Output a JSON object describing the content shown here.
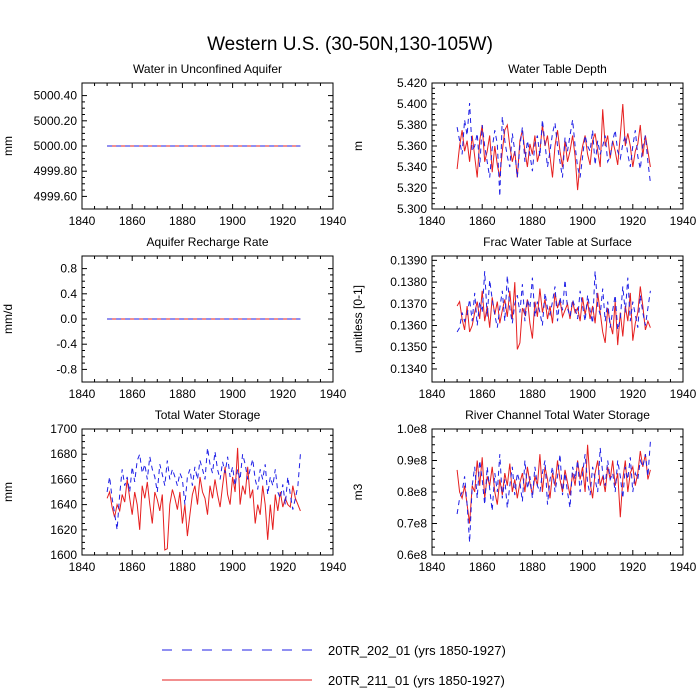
{
  "title": "Western U.S. (30-50N,130-105W)",
  "legend": [
    {
      "label": "20TR_202_01 (yrs 1850-1927)",
      "color": "#1f1fe6",
      "dash": "dashed"
    },
    {
      "label": "20TR_211_01 (yrs 1850-1927)",
      "color": "#e61f1f",
      "dash": "solid"
    }
  ],
  "chart_data": [
    {
      "type": "line",
      "title": "Water in Unconfined Aquifer",
      "ylabel": "mm",
      "xlim": [
        1840,
        1940
      ],
      "xticks": [
        1840,
        1860,
        1880,
        1900,
        1920,
        1940
      ],
      "xtick_labels": [
        "1840",
        "1860",
        "1880",
        "1900",
        "1920",
        "1940"
      ],
      "ylim": [
        4999.5,
        5000.5
      ],
      "yticks": [
        4999.6,
        4999.8,
        5000.0,
        5000.2,
        5000.4
      ],
      "ytick_labels": [
        "4999.60",
        "4999.80",
        "5000.00",
        "5000.20",
        "5000.40"
      ],
      "series": [
        {
          "name": "20TR_202_01",
          "x_start": 1850,
          "x_end": 1927,
          "values": [
            5000.0,
            5000.0
          ]
        },
        {
          "name": "20TR_211_01",
          "x_start": 1850,
          "x_end": 1927,
          "values": [
            5000.0,
            5000.0
          ]
        }
      ]
    },
    {
      "type": "line",
      "title": "Water Table Depth",
      "ylabel": "m",
      "xlim": [
        1840,
        1940
      ],
      "xticks": [
        1840,
        1860,
        1880,
        1900,
        1920,
        1940
      ],
      "xtick_labels": [
        "1840",
        "1860",
        "1880",
        "1900",
        "1920",
        "1940"
      ],
      "ylim": [
        5.3,
        5.42
      ],
      "yticks": [
        5.3,
        5.32,
        5.34,
        5.36,
        5.38,
        5.4,
        5.42
      ],
      "ytick_labels": [
        "5.300",
        "5.320",
        "5.340",
        "5.360",
        "5.380",
        "5.400",
        "5.420"
      ],
      "series": [
        {
          "name": "20TR_202_01",
          "x_start": 1850,
          "x_end": 1927,
          "values": [
            5.378,
            5.365,
            5.352,
            5.385,
            5.37,
            5.401,
            5.355,
            5.36,
            5.372,
            5.34,
            5.38,
            5.36,
            5.345,
            5.33,
            5.358,
            5.375,
            5.362,
            5.312,
            5.388,
            5.365,
            5.35,
            5.34,
            5.372,
            5.355,
            5.33,
            5.36,
            5.378,
            5.345,
            5.365,
            5.352,
            5.336,
            5.362,
            5.37,
            5.35,
            5.385,
            5.362,
            5.34,
            5.355,
            5.372,
            5.382,
            5.36,
            5.345,
            5.33,
            5.368,
            5.355,
            5.37,
            5.385,
            5.36,
            5.34,
            5.33,
            5.35,
            5.37,
            5.36,
            5.355,
            5.375,
            5.342,
            5.365,
            5.352,
            5.36,
            5.37,
            5.345,
            5.35,
            5.365,
            5.375,
            5.355,
            5.348,
            5.362,
            5.37,
            5.352,
            5.34,
            5.36,
            5.375,
            5.35,
            5.338,
            5.36,
            5.37,
            5.345,
            5.325
          ]
        },
        {
          "name": "20TR_211_01",
          "x_start": 1850,
          "x_end": 1927,
          "values": [
            5.338,
            5.36,
            5.375,
            5.355,
            5.365,
            5.345,
            5.37,
            5.35,
            5.33,
            5.365,
            5.38,
            5.345,
            5.355,
            5.37,
            5.335,
            5.36,
            5.342,
            5.33,
            5.355,
            5.375,
            5.38,
            5.36,
            5.345,
            5.355,
            5.33,
            5.365,
            5.375,
            5.355,
            5.34,
            5.362,
            5.352,
            5.37,
            5.345,
            5.355,
            5.38,
            5.36,
            5.37,
            5.35,
            5.33,
            5.36,
            5.375,
            5.355,
            5.34,
            5.365,
            5.345,
            5.355,
            5.37,
            5.35,
            5.318,
            5.345,
            5.36,
            5.37,
            5.352,
            5.342,
            5.365,
            5.372,
            5.355,
            5.34,
            5.395,
            5.36,
            5.37,
            5.348,
            5.365,
            5.355,
            5.342,
            5.37,
            5.4,
            5.36,
            5.372,
            5.36,
            5.34,
            5.355,
            5.362,
            5.38,
            5.35,
            5.37,
            5.355,
            5.34
          ]
        }
      ]
    },
    {
      "type": "line",
      "title": "Aquifer Recharge Rate",
      "ylabel": "mm/d",
      "xlim": [
        1840,
        1940
      ],
      "xticks": [
        1840,
        1860,
        1880,
        1900,
        1920,
        1940
      ],
      "xtick_labels": [
        "1840",
        "1860",
        "1880",
        "1900",
        "1920",
        "1940"
      ],
      "ylim": [
        -1.0,
        1.0
      ],
      "yticks": [
        -0.8,
        -0.4,
        0.0,
        0.4,
        0.8
      ],
      "ytick_labels": [
        "-0.8",
        "-0.4",
        "0.0",
        "0.4",
        "0.8"
      ],
      "series": [
        {
          "name": "20TR_202_01",
          "x_start": 1850,
          "x_end": 1927,
          "values": [
            0.0,
            0.0
          ]
        },
        {
          "name": "20TR_211_01",
          "x_start": 1850,
          "x_end": 1927,
          "values": [
            0.0,
            0.0
          ]
        }
      ]
    },
    {
      "type": "line",
      "title": "Frac Water Table at Surface",
      "ylabel": "unitless [0-1]",
      "xlim": [
        1840,
        1940
      ],
      "xticks": [
        1840,
        1860,
        1880,
        1900,
        1920,
        1940
      ],
      "xtick_labels": [
        "1840",
        "1860",
        "1880",
        "1900",
        "1920",
        "1940"
      ],
      "ylim": [
        0.1334,
        0.1392
      ],
      "yticks": [
        0.134,
        0.135,
        0.136,
        0.137,
        0.138,
        0.139
      ],
      "ytick_labels": [
        "0.1340",
        "0.1350",
        "0.1360",
        "0.1370",
        "0.1380",
        "0.1390"
      ],
      "series": [
        {
          "name": "20TR_202_01",
          "x_start": 1850,
          "x_end": 1927,
          "values": [
            0.1357,
            0.1359,
            0.1366,
            0.1362,
            0.1365,
            0.1372,
            0.1362,
            0.1375,
            0.136,
            0.1371,
            0.1366,
            0.1385,
            0.1364,
            0.1381,
            0.1372,
            0.1365,
            0.1359,
            0.1368,
            0.1376,
            0.1362,
            0.1383,
            0.1368,
            0.1361,
            0.137,
            0.1374,
            0.1366,
            0.1379,
            0.1362,
            0.1372,
            0.1368,
            0.1382,
            0.1364,
            0.1371,
            0.1366,
            0.136,
            0.1375,
            0.1368,
            0.1365,
            0.1371,
            0.1378,
            0.1362,
            0.1373,
            0.1367,
            0.1381,
            0.1368,
            0.1364,
            0.1372,
            0.1368,
            0.1363,
            0.1376,
            0.1369,
            0.1362,
            0.1374,
            0.1367,
            0.1361,
            0.1385,
            0.1369,
            0.1365,
            0.1377,
            0.1362,
            0.1371,
            0.1359,
            0.1367,
            0.1374,
            0.1358,
            0.1363,
            0.1378,
            0.1366,
            0.1382,
            0.1362,
            0.1371,
            0.1365,
            0.1359,
            0.1374,
            0.1366,
            0.136,
            0.1368,
            0.1376
          ]
        },
        {
          "name": "20TR_211_01",
          "x_start": 1850,
          "x_end": 1927,
          "values": [
            0.1369,
            0.1371,
            0.1363,
            0.1358,
            0.1369,
            0.1357,
            0.136,
            0.1366,
            0.1371,
            0.1363,
            0.1376,
            0.1362,
            0.1369,
            0.1359,
            0.1373,
            0.1365,
            0.1371,
            0.1361,
            0.1367,
            0.1372,
            0.1364,
            0.1376,
            0.1363,
            0.138,
            0.1349,
            0.1352,
            0.1368,
            0.1365,
            0.1372,
            0.1361,
            0.1354,
            0.1371,
            0.1364,
            0.1377,
            0.1366,
            0.1372,
            0.1363,
            0.1369,
            0.1361,
            0.1375,
            0.1368,
            0.1372,
            0.1364,
            0.1367,
            0.137,
            0.1363,
            0.1371,
            0.1366,
            0.1368,
            0.1362,
            0.1373,
            0.1365,
            0.1371,
            0.1363,
            0.1369,
            0.1361,
            0.1375,
            0.1366,
            0.1357,
            0.1352,
            0.1368,
            0.1361,
            0.1356,
            0.1371,
            0.1351,
            0.1366,
            0.1355,
            0.1369,
            0.1362,
            0.1375,
            0.1353,
            0.1361,
            0.1366,
            0.1378,
            0.1369,
            0.1358,
            0.1362,
            0.1359
          ]
        }
      ]
    },
    {
      "type": "line",
      "title": "Total Water Storage",
      "ylabel": "mm",
      "xlim": [
        1840,
        1940
      ],
      "xticks": [
        1840,
        1860,
        1880,
        1900,
        1920,
        1940
      ],
      "xtick_labels": [
        "1840",
        "1860",
        "1880",
        "1900",
        "1920",
        "1940"
      ],
      "ylim": [
        1600,
        1700
      ],
      "yticks": [
        1600,
        1620,
        1640,
        1660,
        1680,
        1700
      ],
      "ytick_labels": [
        "1600",
        "1620",
        "1640",
        "1660",
        "1680",
        "1700"
      ],
      "series": [
        {
          "name": "20TR_202_01",
          "x_start": 1850,
          "x_end": 1927,
          "values": [
            1650,
            1662,
            1645,
            1633,
            1620,
            1648,
            1668,
            1655,
            1662,
            1650,
            1670,
            1658,
            1675,
            1680,
            1665,
            1672,
            1660,
            1678,
            1668,
            1662,
            1650,
            1672,
            1664,
            1655,
            1675,
            1660,
            1668,
            1662,
            1655,
            1665,
            1660,
            1640,
            1662,
            1668,
            1655,
            1670,
            1660,
            1675,
            1668,
            1660,
            1685,
            1672,
            1665,
            1682,
            1668,
            1660,
            1674,
            1665,
            1678,
            1662,
            1670,
            1655,
            1668,
            1660,
            1680,
            1672,
            1660,
            1668,
            1676,
            1660,
            1652,
            1668,
            1660,
            1672,
            1648,
            1662,
            1655,
            1668,
            1650,
            1645,
            1656,
            1640,
            1662,
            1648,
            1636,
            1645,
            1655,
            1680
          ]
        },
        {
          "name": "20TR_211_01",
          "x_start": 1850,
          "x_end": 1927,
          "values": [
            1645,
            1650,
            1638,
            1630,
            1640,
            1635,
            1648,
            1642,
            1660,
            1645,
            1632,
            1650,
            1640,
            1620,
            1655,
            1645,
            1658,
            1640,
            1625,
            1650,
            1644,
            1635,
            1648,
            1604,
            1605,
            1640,
            1652,
            1645,
            1636,
            1650,
            1625,
            1640,
            1615,
            1632,
            1648,
            1655,
            1640,
            1662,
            1650,
            1645,
            1632,
            1655,
            1645,
            1660,
            1648,
            1638,
            1655,
            1670,
            1648,
            1640,
            1662,
            1650,
            1685,
            1640,
            1655,
            1648,
            1670,
            1645,
            1652,
            1625,
            1640,
            1632,
            1655,
            1640,
            1612,
            1640,
            1620,
            1648,
            1635,
            1650,
            1638,
            1645,
            1640,
            1638,
            1655,
            1645,
            1640,
            1635
          ]
        }
      ]
    },
    {
      "type": "line",
      "title": "River Channel Total Water Storage",
      "ylabel": "m3",
      "xlim": [
        1840,
        1940
      ],
      "xticks": [
        1840,
        1860,
        1880,
        1900,
        1920,
        1940
      ],
      "xtick_labels": [
        "1840",
        "1860",
        "1880",
        "1900",
        "1920",
        "1940"
      ],
      "ylim": [
        0.6,
        1.0
      ],
      "yticks": [
        0.6,
        0.7,
        0.8,
        0.9,
        1.0
      ],
      "ytick_labels": [
        "0.6e8",
        "0.7e8",
        "0.8e8",
        "0.9e8",
        "1.0e8"
      ],
      "y_scale_note": "values in units of 1e8 m3",
      "series": [
        {
          "name": "20TR_202_01",
          "x_start": 1850,
          "x_end": 1927,
          "values": [
            0.73,
            0.78,
            0.8,
            0.85,
            0.76,
            0.64,
            0.82,
            0.88,
            0.78,
            0.9,
            0.84,
            0.76,
            0.88,
            0.81,
            0.74,
            0.86,
            0.8,
            0.92,
            0.78,
            0.84,
            0.75,
            0.82,
            0.88,
            0.79,
            0.86,
            0.83,
            0.77,
            0.9,
            0.81,
            0.85,
            0.78,
            0.88,
            0.82,
            0.8,
            0.86,
            0.9,
            0.76,
            0.84,
            0.88,
            0.8,
            0.85,
            0.92,
            0.79,
            0.86,
            0.8,
            0.75,
            0.88,
            0.84,
            0.9,
            0.8,
            0.86,
            0.92,
            0.83,
            0.79,
            0.88,
            0.84,
            0.8,
            0.94,
            0.86,
            0.82,
            0.9,
            0.84,
            0.86,
            0.8,
            0.9,
            0.85,
            0.78,
            0.88,
            0.84,
            0.91,
            0.8,
            0.86,
            0.84,
            0.9,
            0.88,
            0.92,
            0.85,
            0.96
          ]
        },
        {
          "name": "20TR_211_01",
          "x_start": 1850,
          "x_end": 1927,
          "values": [
            0.87,
            0.8,
            0.78,
            0.82,
            0.76,
            0.7,
            0.82,
            0.8,
            0.9,
            0.82,
            0.91,
            0.78,
            0.85,
            0.82,
            0.88,
            0.8,
            0.76,
            0.84,
            0.79,
            0.86,
            0.82,
            0.89,
            0.8,
            0.84,
            0.78,
            0.83,
            0.86,
            0.8,
            0.88,
            0.83,
            0.79,
            0.85,
            0.82,
            0.92,
            0.8,
            0.88,
            0.84,
            0.78,
            0.86,
            0.82,
            0.9,
            0.84,
            0.8,
            0.87,
            0.83,
            0.79,
            0.86,
            0.82,
            0.9,
            0.84,
            0.88,
            0.8,
            0.95,
            0.83,
            0.78,
            0.86,
            0.9,
            0.82,
            0.85,
            0.8,
            0.88,
            0.84,
            0.9,
            0.82,
            0.86,
            0.72,
            0.84,
            0.9,
            0.8,
            0.86,
            0.88,
            0.82,
            0.86,
            0.93,
            0.88,
            0.92,
            0.84,
            0.87
          ]
        }
      ]
    }
  ]
}
